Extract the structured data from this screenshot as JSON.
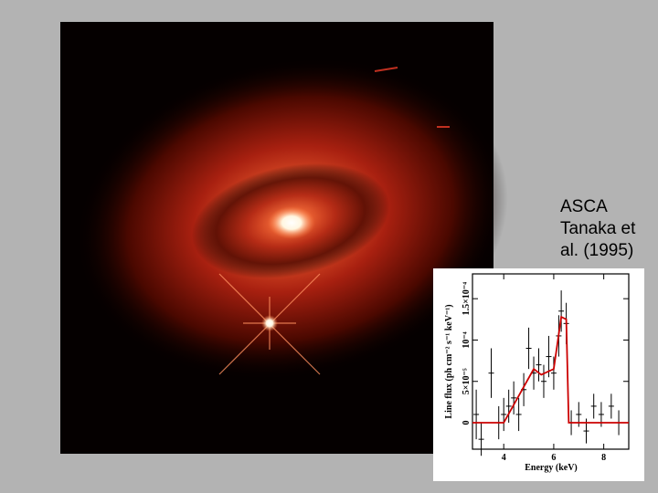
{
  "chart_data": {
    "type": "line",
    "annotation": [
      "ASCA",
      "Tanaka et",
      "al. (1995)"
    ],
    "x_label": "Energy (keV)",
    "y_label": "Line flux (ph cm⁻² s⁻¹ keV⁻¹)",
    "xlim": [
      2.75,
      9
    ],
    "ylim": [
      -3.2e-05,
      0.00018
    ],
    "xticks": [
      4,
      6,
      8
    ],
    "yticks": [
      0,
      {
        "value": 5e-05,
        "label": "5×10⁻⁵"
      },
      {
        "value": 0.0001,
        "label": "10⁻⁴"
      },
      {
        "value": 0.00015,
        "label": "1.5×10⁻⁴"
      }
    ],
    "series": [
      {
        "mode": "markers",
        "color": "#000000",
        "x": [
          2.9,
          3.1,
          3.5,
          3.8,
          4.0,
          4.2,
          4.4,
          4.6,
          4.8,
          5.0,
          5.2,
          5.4,
          5.6,
          5.8,
          6.0,
          6.2,
          6.3,
          6.5,
          6.7,
          7.0,
          7.3,
          7.6,
          7.9,
          8.3,
          8.6
        ],
        "values": [
          1e-05,
          -2e-05,
          6e-05,
          0,
          1e-05,
          2e-05,
          3e-05,
          1e-05,
          4e-05,
          9e-05,
          6e-05,
          7e-05,
          5e-05,
          8e-05,
          6e-05,
          0.000105,
          0.000135,
          0.00012,
          0,
          1e-05,
          -1e-05,
          2e-05,
          1e-05,
          2e-05,
          0
        ],
        "errors": [
          3e-05,
          2e-05,
          3e-05,
          2e-05,
          2e-05,
          2e-05,
          2e-05,
          2e-05,
          2e-05,
          2.5e-05,
          2e-05,
          2e-05,
          2e-05,
          2.5e-05,
          2e-05,
          2.5e-05,
          2.5e-05,
          2.5e-05,
          1.5e-05,
          1.5e-05,
          1.5e-05,
          1.5e-05,
          1.5e-05,
          1.5e-05,
          1.5e-05
        ]
      },
      {
        "mode": "line",
        "color": "#cc0000",
        "x": [
          2.75,
          4.0,
          5.2,
          5.5,
          6.0,
          6.3,
          6.5,
          6.6,
          9.0
        ],
        "values": [
          0,
          0,
          6.5e-05,
          5.8e-05,
          6.5e-05,
          0.000128,
          0.000125,
          0,
          0
        ]
      }
    ]
  }
}
